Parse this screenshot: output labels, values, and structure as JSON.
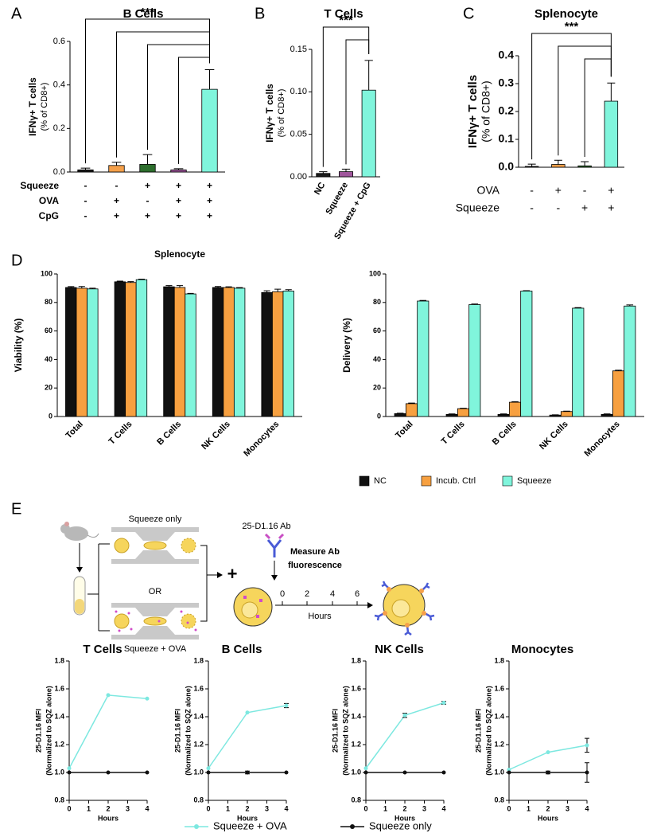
{
  "panels": [
    "A",
    "B",
    "C",
    "D",
    "E"
  ],
  "diagram": {
    "squeeze_only": "Squeeze only",
    "or": "OR",
    "squeeze_ova": "Squeeze + OVA",
    "antibody": "25-D1.16 Ab",
    "measure": [
      "Measure Ab",
      "fluorescence"
    ],
    "timeline_ticks": [
      "0",
      "2",
      "4",
      "6"
    ],
    "timeline_label": "Hours"
  },
  "chart_data": [
    {
      "type": "bar",
      "title": "B Cells",
      "ylabel": [
        "IFNγ+ T cells",
        "(% of CD8+)"
      ],
      "values": [
        0.01,
        0.03,
        0.035,
        0.01,
        0.38
      ],
      "errors": [
        0.008,
        0.015,
        0.045,
        0.005,
        0.09
      ],
      "colors": [
        "#1a1a1a",
        "#f5a04a",
        "#2d6e2d",
        "#a0569c",
        "#80f5dc"
      ],
      "ylim": [
        0,
        0.6
      ],
      "yticks": [
        {
          "value": 0,
          "label": "0.0"
        },
        0.2,
        0.4,
        0.6
      ],
      "rows": [
        {
          "label": "Squeeze",
          "values": [
            "-",
            "-",
            "+",
            "+",
            "+"
          ]
        },
        {
          "label": "OVA",
          "values": [
            "-",
            "+",
            "-",
            "+",
            "+"
          ]
        },
        {
          "label": "CpG",
          "values": [
            "-",
            "+",
            "+",
            "+",
            "+"
          ]
        }
      ],
      "annotation": "***"
    },
    {
      "type": "bar",
      "title": "T Cells",
      "ylabel": [
        "IFNγ+ T cells",
        "(% of CD8+)"
      ],
      "categories": [
        "NC",
        "Squeeze",
        "Squeeze + CpG"
      ],
      "values": [
        0.004,
        0.006,
        0.102
      ],
      "errors": [
        0.002,
        0.003,
        0.035
      ],
      "colors": [
        "#1a1a1a",
        "#a0569c",
        "#80f5dc"
      ],
      "ylim": [
        0,
        0.15
      ],
      "yticks": [
        {
          "value": 0,
          "label": "0.00"
        },
        0.05,
        {
          "value": 0.1,
          "label": "0.10"
        },
        0.15
      ],
      "annotation": "***"
    },
    {
      "type": "bar",
      "title": "Splenocyte",
      "ylabel": [
        "IFNγ+ T cells",
        "(% of CD8+)"
      ],
      "values": [
        0.003,
        0.01,
        0.005,
        0.237
      ],
      "errors": [
        0.008,
        0.015,
        0.015,
        0.065
      ],
      "colors": [
        "#1a1a1a",
        "#f5a04a",
        "#2d6e2d",
        "#80f5dc"
      ],
      "ylim": [
        0,
        0.4
      ],
      "yticks": [
        {
          "value": 0,
          "label": "0.0"
        },
        0.1,
        0.2,
        0.3,
        0.4
      ],
      "rows": [
        {
          "label": "OVA",
          "values": [
            "-",
            "+",
            "-",
            "+"
          ]
        },
        {
          "label": "Squeeze",
          "values": [
            "-",
            "-",
            "+",
            "+"
          ]
        }
      ],
      "annotation": "***"
    },
    {
      "type": "bar",
      "title": "Splenocyte",
      "ylabel": "Viability (%)",
      "categories": [
        "Total",
        "T Cells",
        "B Cells",
        "NK Cells",
        "Monocytes"
      ],
      "series": [
        {
          "color": "#111111",
          "values": [
            90.5,
            94.5,
            91,
            90.5,
            87
          ],
          "errors": [
            0.6,
            0.5,
            0.8,
            0.7,
            1.2
          ]
        },
        {
          "color": "#f7a040",
          "values": [
            90,
            94,
            90.5,
            90.5,
            87.5
          ],
          "errors": [
            1.2,
            0.6,
            1.3,
            0.5,
            1.8
          ]
        },
        {
          "color": "#80f5dc",
          "values": [
            89.5,
            96,
            86,
            90,
            88
          ],
          "errors": [
            0.5,
            0.4,
            0.4,
            0.4,
            1.0
          ]
        }
      ],
      "ylim": [
        0,
        100
      ],
      "yticks": [
        0,
        20,
        40,
        60,
        80,
        100
      ]
    },
    {
      "type": "bar",
      "ylabel": "Delivery (%)",
      "categories": [
        "Total",
        "T Cells",
        "B Cells",
        "NK Cells",
        "Monocytes"
      ],
      "series": [
        {
          "name": "NC",
          "color": "#111111",
          "values": [
            2,
            1.5,
            1.5,
            1,
            1.5
          ],
          "errors": [
            0.3,
            0.3,
            0.3,
            0.2,
            0.3
          ]
        },
        {
          "name": "Incub.  Ctrl",
          "color": "#f7a040",
          "values": [
            9,
            5.5,
            10,
            3.5,
            32
          ],
          "errors": [
            0.4,
            0.3,
            0.4,
            0.3,
            0.5
          ]
        },
        {
          "name": "Squeeze",
          "color": "#80f5dc",
          "values": [
            81,
            78.5,
            88,
            76,
            77.5
          ],
          "errors": [
            0.4,
            0.4,
            0.3,
            0.4,
            0.8
          ]
        }
      ],
      "ylim": [
        0,
        100
      ],
      "yticks": [
        0,
        20,
        40,
        60,
        80,
        100
      ]
    },
    {
      "type": "line",
      "title": "T Cells",
      "ylabel": [
        "25-D1.16 MFI",
        "(Normalized to SQZ alone)"
      ],
      "xlabel": "Hours",
      "x": [
        0,
        2,
        4
      ],
      "xlim": [
        0,
        4
      ],
      "xticks": [
        0,
        1,
        2,
        3,
        4
      ],
      "ylim": [
        0.8,
        1.8
      ],
      "yticks": [
        0.8,
        {
          "value": 1,
          "label": "1.0"
        },
        1.2,
        1.4,
        1.6,
        1.8
      ],
      "series": [
        {
          "name": "Squeeze + OVA",
          "color": "#7de8e0",
          "values": [
            1.03,
            1.555,
            1.53
          ]
        },
        {
          "name": "Squeeze only",
          "color": "#111111",
          "values": [
            1,
            1,
            1
          ]
        }
      ]
    },
    {
      "type": "line",
      "title": "B Cells",
      "ylabel": [
        "25-D1.16 MFI",
        "(Normalized to SQZ alone)"
      ],
      "xlabel": "Hours",
      "x": [
        0,
        2,
        4
      ],
      "xlim": [
        0,
        4
      ],
      "xticks": [
        0,
        1,
        2,
        3,
        4
      ],
      "ylim": [
        0.8,
        1.8
      ],
      "yticks": [
        0.8,
        {
          "value": 1,
          "label": "1.0"
        },
        1.2,
        1.4,
        1.6,
        1.8
      ],
      "series": [
        {
          "color": "#7de8e0",
          "values": [
            1.03,
            1.43,
            1.48
          ],
          "errors": [
            null,
            null,
            0.015
          ]
        },
        {
          "color": "#111111",
          "values": [
            1,
            1,
            1
          ],
          "errors": [
            null,
            0.01,
            null
          ]
        }
      ]
    },
    {
      "type": "line",
      "title": "NK Cells",
      "ylabel": [
        "25-D1.16 MFI",
        "(Normalized to SQZ alone)"
      ],
      "xlabel": "Hours",
      "x": [
        0,
        2,
        4
      ],
      "xlim": [
        0,
        4
      ],
      "xticks": [
        0,
        1,
        2,
        3,
        4
      ],
      "ylim": [
        0.8,
        1.8
      ],
      "yticks": [
        0.8,
        {
          "value": 1,
          "label": "1.0"
        },
        1.2,
        1.4,
        1.6,
        1.8
      ],
      "series": [
        {
          "color": "#7de8e0",
          "values": [
            1.03,
            1.41,
            1.5
          ],
          "errors": [
            null,
            0.015,
            0.01
          ]
        },
        {
          "color": "#111111",
          "values": [
            1,
            1,
            1
          ]
        }
      ]
    },
    {
      "type": "line",
      "title": "Monocytes",
      "ylabel": [
        "25-D1.16 MFI",
        "(Normalized to SQZ alone)"
      ],
      "xlabel": "Hours",
      "x": [
        0,
        2,
        4
      ],
      "xlim": [
        0,
        4
      ],
      "xticks": [
        0,
        1,
        2,
        3,
        4
      ],
      "ylim": [
        0.8,
        1.8
      ],
      "yticks": [
        0.8,
        {
          "value": 1,
          "label": "1.0"
        },
        1.2,
        1.4,
        1.6,
        1.8
      ],
      "series": [
        {
          "color": "#7de8e0",
          "values": [
            1.02,
            1.145,
            1.195
          ],
          "errors": [
            null,
            null,
            0.05
          ]
        },
        {
          "color": "#111111",
          "values": [
            1,
            1,
            1
          ],
          "errors": [
            null,
            0.01,
            0.07
          ]
        }
      ]
    }
  ]
}
